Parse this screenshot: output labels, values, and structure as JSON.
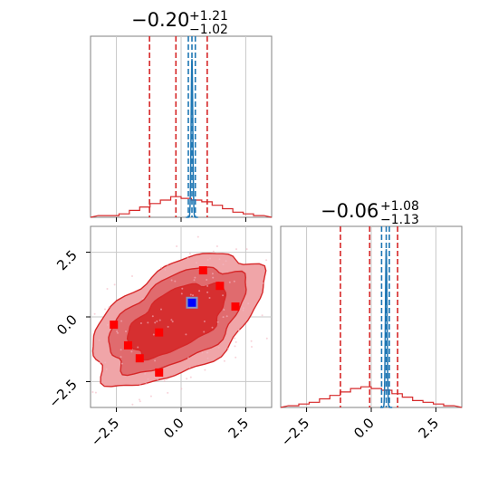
{
  "chart_data": {
    "type": "corner",
    "parameters": [
      "",
      ""
    ],
    "axis_range": [
      -3.5,
      3.5
    ],
    "ticks": [
      -2.5,
      0.0,
      2.5
    ],
    "tick_labels": [
      "−2.5",
      "0.0",
      "2.5"
    ],
    "grid": true,
    "colors": {
      "samples": "#d62728",
      "reference": "#1f77b4",
      "marker_blue": "#0000ff",
      "marker_red": "#ff0000"
    },
    "panels": [
      {
        "kind": "marginal",
        "param_index": 0,
        "title": {
          "median": "−0.20",
          "plus": "+1.21",
          "minus": "−1.02"
        },
        "red_quantiles": [
          -1.22,
          -0.2,
          1.01
        ],
        "blue_quantiles": [
          0.28,
          0.42,
          0.55
        ],
        "red_hist": {
          "bins": [
            -3.2,
            -2.8,
            -2.4,
            -2.0,
            -1.6,
            -1.2,
            -0.8,
            -0.4,
            0.0,
            0.4,
            0.8,
            1.2,
            1.6,
            2.0,
            2.4,
            2.8
          ],
          "values": [
            0.01,
            0.01,
            0.02,
            0.04,
            0.06,
            0.08,
            0.1,
            0.12,
            0.11,
            0.1,
            0.09,
            0.07,
            0.05,
            0.03,
            0.02,
            0.01
          ]
        },
        "blue_peak": {
          "center": 0.42,
          "width": 0.07,
          "height": 0.92
        }
      },
      {
        "kind": "marginal",
        "param_index": 1,
        "title": {
          "median": "−0.06",
          "plus": "+1.08",
          "minus": "−1.13"
        },
        "red_quantiles": [
          -1.19,
          -0.06,
          1.02
        ],
        "blue_quantiles": [
          0.4,
          0.58,
          0.7
        ],
        "red_hist": {
          "bins": [
            -3.2,
            -2.8,
            -2.4,
            -2.0,
            -1.6,
            -1.2,
            -0.8,
            -0.4,
            0.0,
            0.4,
            0.8,
            1.2,
            1.6,
            2.0,
            2.4,
            2.8
          ],
          "values": [
            0.01,
            0.02,
            0.03,
            0.05,
            0.07,
            0.09,
            0.11,
            0.12,
            0.11,
            0.1,
            0.08,
            0.06,
            0.04,
            0.03,
            0.02,
            0.01
          ]
        },
        "blue_peak": {
          "center": 0.58,
          "width": 0.07,
          "height": 0.92
        }
      },
      {
        "kind": "joint",
        "x_index": 0,
        "y_index": 1,
        "red_points": [
          [
            -2.6,
            -0.3
          ],
          [
            -2.05,
            -1.1
          ],
          [
            -1.6,
            -1.6
          ],
          [
            -0.85,
            -2.15
          ],
          [
            -0.85,
            -0.6
          ],
          [
            0.85,
            1.8
          ],
          [
            1.5,
            1.2
          ],
          [
            2.1,
            0.4
          ]
        ],
        "blue_point": [
          0.42,
          0.55
        ],
        "contour_center": [
          -0.15,
          -0.1
        ]
      }
    ]
  }
}
